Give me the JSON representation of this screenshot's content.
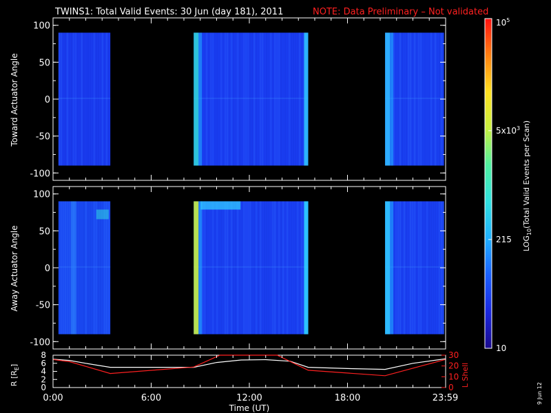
{
  "title": "TWINS1: Total Valid Events: 30 Jun (day 181), 2011",
  "note": "NOTE: Data Preliminary – Not validated",
  "date_stamp": "9 Jun 12",
  "colors": {
    "note": "#ff2020",
    "background": "#000000",
    "axes": "#ffffff",
    "r_line": "#ffffff",
    "lshell_line": "#ff2020"
  },
  "chart_data": [
    {
      "type": "heatmap",
      "name": "toward-panel",
      "ylabel": "Toward Actuator Angle",
      "ylim": [
        -110,
        110
      ],
      "yticks": [
        100,
        50,
        0,
        -50,
        -100
      ],
      "xlim": [
        0,
        24
      ],
      "data_angle_range": [
        -90,
        90
      ],
      "segments": [
        {
          "start": 0.33,
          "end": 3.5,
          "base_color": "#1a3cf0"
        },
        {
          "start": 8.6,
          "end": 15.6,
          "base_color": "#1a3ef2",
          "edge_left": "#30d0d8",
          "edge_right": "#30c8ff"
        },
        {
          "start": 20.3,
          "end": 23.9,
          "base_color": "#1a40f2",
          "edge_left": "#30b8ff"
        }
      ]
    },
    {
      "type": "heatmap",
      "name": "away-panel",
      "ylabel": "Away Actuator Angle",
      "ylim": [
        -110,
        110
      ],
      "yticks": [
        100,
        50,
        0,
        -50,
        -100
      ],
      "xlim": [
        0,
        24
      ],
      "data_angle_range": [
        -90,
        90
      ],
      "segments": [
        {
          "start": 0.33,
          "end": 3.5,
          "base_color": "#1a4af2"
        },
        {
          "start": 8.6,
          "end": 15.6,
          "base_color": "#1a40f2",
          "edge_left": "#c8f040",
          "edge_right": "#30d8ff"
        },
        {
          "start": 20.3,
          "end": 23.9,
          "base_color": "#1a40f2",
          "edge_left": "#30c8ff"
        }
      ]
    },
    {
      "type": "line",
      "name": "orbit-panel",
      "ylabel_left": "R [R",
      "ylabel_left_sub": "E",
      "ylabel_left_end": "]",
      "ylabel_right": "L Shell",
      "xlabel": "Time (UT)",
      "xlim": [
        0,
        24
      ],
      "xtick_labels": [
        "0:00",
        "6:00",
        "12:00",
        "18:00",
        "23:59"
      ],
      "xtick_values": [
        0,
        6,
        12,
        18,
        23.98
      ],
      "ylim_left": [
        0,
        8
      ],
      "yticks_left": [
        8,
        6,
        4,
        2,
        0
      ],
      "ylim_right": [
        0,
        30
      ],
      "yticks_right": [
        30,
        20,
        10,
        0
      ],
      "series": [
        {
          "axis": "left",
          "x": [
            0,
            1,
            2,
            3.5,
            5,
            8.6,
            10,
            11.5,
            13,
            14.5,
            15.6,
            18,
            20.3,
            22,
            23.98
          ],
          "y": [
            7.0,
            6.7,
            6.0,
            5.0,
            5.0,
            5.0,
            6.2,
            6.8,
            6.9,
            6.5,
            5.0,
            4.7,
            4.5,
            6.0,
            7.1
          ]
        },
        {
          "axis": "right",
          "x": [
            0,
            1,
            3.5,
            8.6,
            10.2,
            13.7,
            15.6,
            20.3,
            23.98
          ],
          "y": [
            26,
            24,
            13,
            19,
            30,
            30,
            16,
            11,
            26
          ]
        }
      ]
    }
  ],
  "colorbar": {
    "label_main": "LOG",
    "label_sub": "10",
    "label_end": "(Total Valid Events per Scan)",
    "ticks": [
      {
        "base": "10",
        "exp": "5",
        "frac": 1.0
      },
      {
        "base": "5x10",
        "exp": "3",
        "frac": 0.66
      },
      {
        "base": "215",
        "exp": "",
        "frac": 0.33
      },
      {
        "base": "10",
        "exp": "",
        "frac": 0.0
      }
    ],
    "stops": [
      "#1a0a8c",
      "#1a28e0",
      "#1a60ff",
      "#20b0ff",
      "#30e0e0",
      "#50f0a0",
      "#c8f040",
      "#ffe020",
      "#ff8010",
      "#ff1010"
    ]
  }
}
